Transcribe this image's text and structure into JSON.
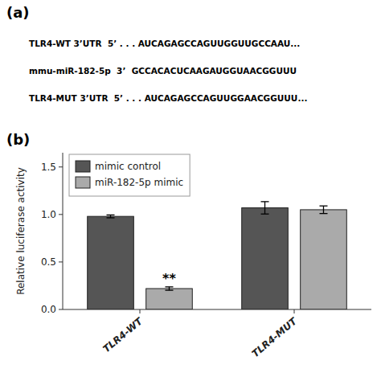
{
  "chart_data": {
    "type": "bar",
    "title": "(b)",
    "annotations": [
      {
        "text": "(a)"
      },
      {
        "text": "TLR4-WT 3’UTR  5’ . . . AUCAGAGCCAGUUGGUUGCCAAU..."
      },
      {
        "text": "mmu-miR-182-5p  3’  GCCACACUCAAGAUGGUAACGGUUU"
      },
      {
        "text": "TLR4-MUT 3’UTR  5’ . . . AUCAGAGCCAGUUGGAACGGUUU..."
      },
      {
        "text": "**",
        "x": "TLR4-WT",
        "series": "miR-182-5p mimic"
      }
    ],
    "categories": [
      "TLR4-WT",
      "TLR4-MUT"
    ],
    "series": [
      {
        "name": "mimic control",
        "color": "#555555",
        "values": [
          0.98,
          1.07
        ],
        "errors": [
          0.015,
          0.065
        ]
      },
      {
        "name": "miR-182-5p mimic",
        "color": "#aaaaaa",
        "values": [
          0.22,
          1.05
        ],
        "errors": [
          0.018,
          0.04
        ]
      }
    ],
    "ylabel": "Relative luciferase activity",
    "ylim": [
      0.0,
      1.65
    ],
    "yticks": [
      {
        "value": 0.0,
        "label": "0.0"
      },
      {
        "value": 0.5,
        "label": "0.5"
      },
      {
        "value": 1.0,
        "label": "1.0"
      },
      {
        "value": 1.5,
        "label": "1.5"
      }
    ],
    "grid": false,
    "legend": "upper left"
  }
}
